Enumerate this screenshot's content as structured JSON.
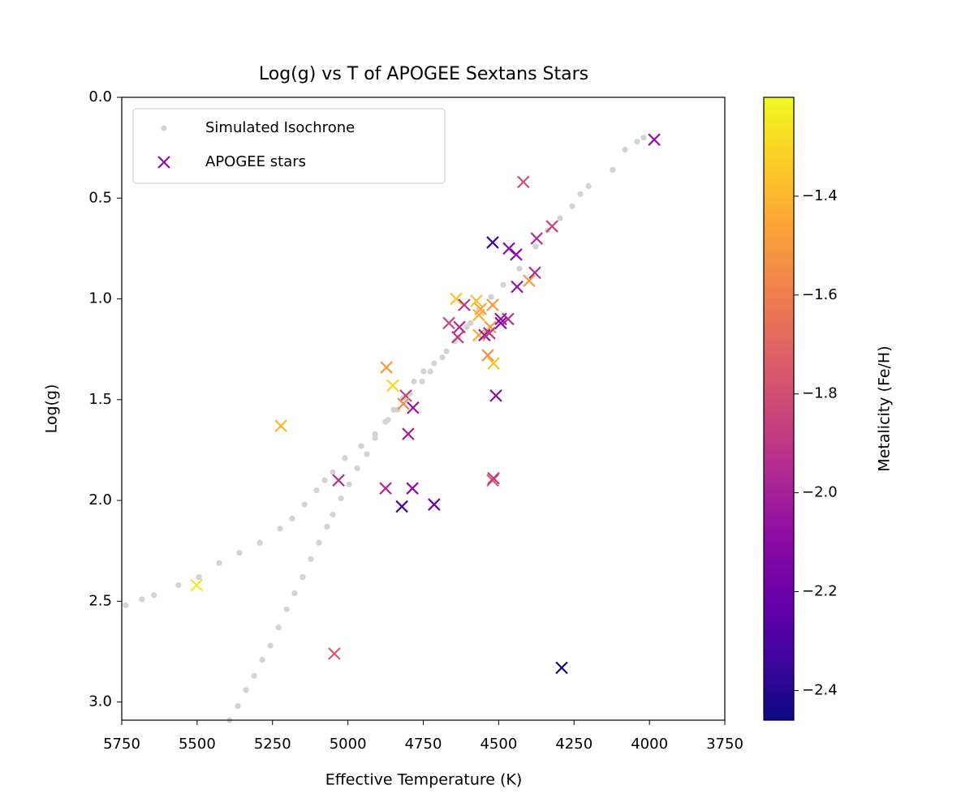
{
  "chart_data": {
    "type": "scatter",
    "title": "Log(g) vs T of APOGEE Sextans Stars",
    "xlabel": "Effective Temperature (K)",
    "ylabel": "Log(g)",
    "xlim": [
      5750,
      3750
    ],
    "ylim": [
      3.09,
      0
    ],
    "xticks": [
      5750,
      5500,
      5250,
      5000,
      4750,
      4500,
      4250,
      4000,
      3750
    ],
    "yticks": [
      {
        "value": 0,
        "label": "0.0"
      },
      0.5,
      {
        "value": 1,
        "label": "1.0"
      },
      1.5,
      {
        "value": 2,
        "label": "2.0"
      },
      2.5,
      {
        "value": 3,
        "label": "3.0"
      }
    ],
    "legend": "upper left",
    "colorbar": {
      "label": "Metalicity (Fe/H)",
      "colormap": "plasma",
      "clim": [
        -2.46,
        -1.2
      ],
      "ticks": [
        {
          "value": -1.4,
          "label": "−1.4"
        },
        {
          "value": -1.6,
          "label": "−1.6"
        },
        {
          "value": -1.8,
          "label": "−1.8"
        },
        {
          "value": -2.0,
          "label": "−2.0"
        },
        {
          "value": -2.2,
          "label": "−2.2"
        },
        {
          "value": -2.4,
          "label": "−2.4"
        }
      ]
    },
    "series": [
      {
        "name": "Simulated Isochrone",
        "color": "#d3d3d3",
        "marker": "dot",
        "x": [
          5737,
          5683,
          5643,
          5562,
          5494,
          5427,
          5360,
          5292,
          5225,
          5185,
          5144,
          5104,
          5077,
          5050,
          5010,
          4956,
          4910,
          4867,
          4835,
          4794,
          4754,
          4727,
          4687,
          4646,
          4606,
          4566,
          4525,
          4485,
          4431,
          4377,
          4337,
          4296,
          4256,
          4229,
          4202,
          4122,
          4081,
          4041,
          4019,
          5392,
          5365,
          5338,
          5311,
          5284,
          5257,
          5230,
          5203,
          5177,
          5150,
          5123,
          5096,
          5069,
          5050,
          5023,
          4996,
          4969,
          4937,
          4910,
          4875,
          4848,
          4816,
          4781,
          4749,
          4714,
          4673,
          4633,
          4593,
          4552
        ],
        "values": [
          2.52,
          2.49,
          2.47,
          2.42,
          2.38,
          2.31,
          2.26,
          2.21,
          2.14,
          2.09,
          2.02,
          1.95,
          1.9,
          1.86,
          1.79,
          1.73,
          1.67,
          1.6,
          1.55,
          1.47,
          1.41,
          1.36,
          1.29,
          1.21,
          1.14,
          1.05,
          0.99,
          0.93,
          0.85,
          0.74,
          0.66,
          0.6,
          0.54,
          0.48,
          0.44,
          0.36,
          0.26,
          0.22,
          0.2,
          3.09,
          3.02,
          2.94,
          2.87,
          2.79,
          2.72,
          2.63,
          2.54,
          2.46,
          2.38,
          2.29,
          2.21,
          2.13,
          2.07,
          1.99,
          1.92,
          1.84,
          1.77,
          1.69,
          1.61,
          1.55,
          1.49,
          1.41,
          1.36,
          1.32,
          1.26,
          1.19,
          1.12,
          1.07
        ]
      },
      {
        "name": "APOGEE stars",
        "color": "#8f0da4",
        "marker": "x",
        "x": [
          3984,
          4418,
          4520,
          4466,
          4442,
          4323,
          4374,
          4399,
          4380,
          4439,
          4641,
          4574,
          4614,
          4560,
          4520,
          4566,
          4493,
          4469,
          4493,
          4665,
          4630,
          4636,
          4528,
          4566,
          4547,
          4531,
          4536,
          4517,
          4872,
          4851,
          4808,
          4816,
          4784,
          4509,
          5222,
          4800,
          5031,
          4520,
          4517,
          4875,
          4786,
          4821,
          4714,
          5502,
          5045,
          4291
        ],
        "values": [
          0.21,
          0.42,
          0.72,
          0.75,
          0.78,
          0.64,
          0.7,
          0.91,
          0.87,
          0.94,
          1.0,
          1.01,
          1.03,
          1.05,
          1.03,
          1.08,
          1.1,
          1.1,
          1.12,
          1.12,
          1.14,
          1.19,
          1.14,
          1.18,
          1.18,
          1.17,
          1.28,
          1.32,
          1.34,
          1.43,
          1.48,
          1.52,
          1.54,
          1.48,
          1.63,
          1.67,
          1.9,
          1.9,
          1.89,
          1.94,
          1.94,
          2.03,
          2.02,
          2.42,
          2.76,
          2.83
        ],
        "c": [
          -2.05,
          -1.8,
          -2.35,
          -2.1,
          -2.1,
          -1.85,
          -1.95,
          -1.5,
          -1.95,
          -2.05,
          -1.35,
          -1.38,
          -1.9,
          -1.45,
          -1.5,
          -1.42,
          -2.05,
          -1.95,
          -2.1,
          -1.85,
          -1.95,
          -1.9,
          -1.5,
          -1.45,
          -2.05,
          -1.9,
          -1.55,
          -1.35,
          -1.5,
          -1.3,
          -1.85,
          -1.55,
          -2.05,
          -2.1,
          -1.4,
          -2.0,
          -1.95,
          -1.75,
          -1.9,
          -1.95,
          -2.1,
          -2.3,
          -2.2,
          -1.25,
          -1.75,
          -2.45
        ]
      }
    ]
  }
}
